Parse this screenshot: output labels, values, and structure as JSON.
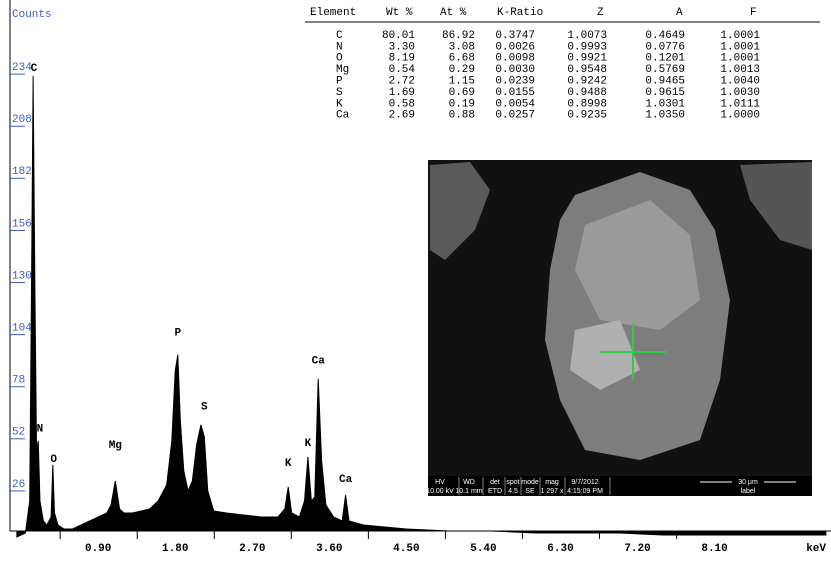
{
  "chart_data": {
    "type": "spectrum",
    "y_label": "Counts",
    "x_label": "keV",
    "color": "#000000",
    "tick_color": "#3b5bc4",
    "x": [
      -0.05,
      0.05,
      0.1,
      0.12,
      0.14,
      0.16,
      0.18,
      0.2,
      0.22,
      0.26,
      0.3,
      0.35,
      0.37,
      0.39,
      0.43,
      0.5,
      0.6,
      0.7,
      0.8,
      0.9,
      1.0,
      1.05,
      1.1,
      1.15,
      1.2,
      1.3,
      1.4,
      1.5,
      1.6,
      1.7,
      1.76,
      1.8,
      1.83,
      1.86,
      1.9,
      1.95,
      2.0,
      2.05,
      2.1,
      2.14,
      2.18,
      2.25,
      2.4,
      2.6,
      2.8,
      3.0,
      3.08,
      3.12,
      3.16,
      3.25,
      3.31,
      3.35,
      3.39,
      3.43,
      3.47,
      3.51,
      3.56,
      3.65,
      3.75,
      3.79,
      3.83,
      4.0,
      4.5,
      5.0,
      5.5,
      6.0,
      6.5,
      7.0,
      7.5,
      8.0,
      8.5,
      9.0,
      9.4
    ],
    "values": [
      2,
      4,
      20,
      120,
      232,
      130,
      45,
      50,
      20,
      10,
      8,
      12,
      38,
      14,
      8,
      6,
      6,
      8,
      10,
      12,
      14,
      18,
      30,
      16,
      14,
      14,
      15,
      16,
      20,
      28,
      50,
      85,
      93,
      60,
      35,
      25,
      30,
      48,
      58,
      52,
      25,
      15,
      14,
      13,
      12,
      12,
      16,
      27,
      14,
      12,
      20,
      42,
      20,
      22,
      81,
      40,
      18,
      12,
      10,
      23,
      10,
      8,
      6,
      5,
      5,
      4,
      4,
      4,
      3,
      3,
      3,
      3,
      3
    ],
    "xlim": [
      -0.13,
      9.46
    ],
    "ylim": [
      5,
      270
    ],
    "xticks": [
      {
        "value": 0.9,
        "label": "0.90"
      },
      {
        "value": 1.8,
        "label": "1.80"
      },
      {
        "value": 2.7,
        "label": "2.70"
      },
      {
        "value": 3.6,
        "label": "3.60"
      },
      {
        "value": 4.5,
        "label": "4.50"
      },
      {
        "value": 5.4,
        "label": "5.40"
      },
      {
        "value": 6.3,
        "label": "6.30"
      },
      {
        "value": 7.2,
        "label": "7.20"
      },
      {
        "value": 8.1,
        "label": "8.10"
      }
    ],
    "yticks": [
      26,
      52,
      78,
      104,
      130,
      156,
      182,
      208,
      234
    ],
    "annotations": [
      {
        "text": "C",
        "x": 0.15,
        "y": 232
      },
      {
        "text": "N",
        "x": 0.22,
        "y": 52
      },
      {
        "text": "O",
        "x": 0.38,
        "y": 37
      },
      {
        "text": "Mg",
        "x": 1.1,
        "y": 44
      },
      {
        "text": "P",
        "x": 1.83,
        "y": 100
      },
      {
        "text": "S",
        "x": 2.14,
        "y": 63
      },
      {
        "text": "K",
        "x": 3.12,
        "y": 35
      },
      {
        "text": "K",
        "x": 3.35,
        "y": 45
      },
      {
        "text": "Ca",
        "x": 3.47,
        "y": 86
      },
      {
        "text": "Ca",
        "x": 3.79,
        "y": 27
      }
    ]
  },
  "table": {
    "headers": [
      "Element",
      "Wt %",
      "At %",
      "K-Ratio",
      "Z",
      "A",
      "F"
    ],
    "rows": [
      [
        "C",
        "80.01",
        "86.92",
        "0.3747",
        "1.0073",
        "0.4649",
        "1.0001"
      ],
      [
        "N",
        "3.30",
        "3.08",
        "0.0026",
        "0.9993",
        "0.0776",
        "1.0001"
      ],
      [
        "O",
        "8.19",
        "6.68",
        "0.0098",
        "0.9921",
        "0.1201",
        "1.0001"
      ],
      [
        "Mg",
        "0.54",
        "0.29",
        "0.0030",
        "0.9548",
        "0.5769",
        "1.0013"
      ],
      [
        "P",
        "2.72",
        "1.15",
        "0.0239",
        "0.9242",
        "0.9465",
        "1.0040"
      ],
      [
        "S",
        "1.69",
        "0.69",
        "0.0155",
        "0.9488",
        "0.9615",
        "1.0030"
      ],
      [
        "K",
        "0.58",
        "0.19",
        "0.0054",
        "0.8998",
        "1.0301",
        "1.0111"
      ],
      [
        "Ca",
        "2.69",
        "0.88",
        "0.0257",
        "0.9235",
        "1.0350",
        "1.0000"
      ]
    ]
  },
  "image": {
    "info_bar": {
      "labels": [
        "HV",
        "WD",
        "det",
        "spot",
        "mode",
        "mag",
        "9/7/2012",
        "30 µm"
      ],
      "values": [
        "10.00 kV",
        "10.1 mm",
        "ETD",
        "4.5",
        "SE",
        "1 297 x",
        "4:15:09 PM",
        "label"
      ]
    }
  }
}
